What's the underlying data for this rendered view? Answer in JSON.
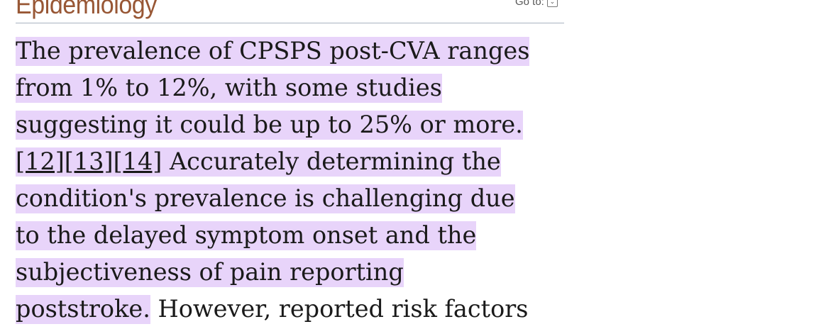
{
  "section": {
    "title": "Epidemiology",
    "goto_label": "Go to:",
    "goto_icon": "chevron-down-icon"
  },
  "highlight_color": "#e8d4fa",
  "heading_color": "#985735",
  "paragraph": {
    "line1": "The prevalence of CPSPS post-CVA ranges",
    "line2": "from 1% to 12%, with some studies",
    "line3": "suggesting it could be up to 25% or more.",
    "refs": [
      "[12]",
      "[13]",
      "[14]"
    ],
    "line4_rest": " Accurately determining the",
    "line5": "condition's prevalence is challenging due",
    "line6": "to the delayed symptom onset and the",
    "line7": "subjectiveness of pain reporting",
    "line8_highlighted": "poststroke.",
    "line8_rest": " However, reported risk factors"
  }
}
